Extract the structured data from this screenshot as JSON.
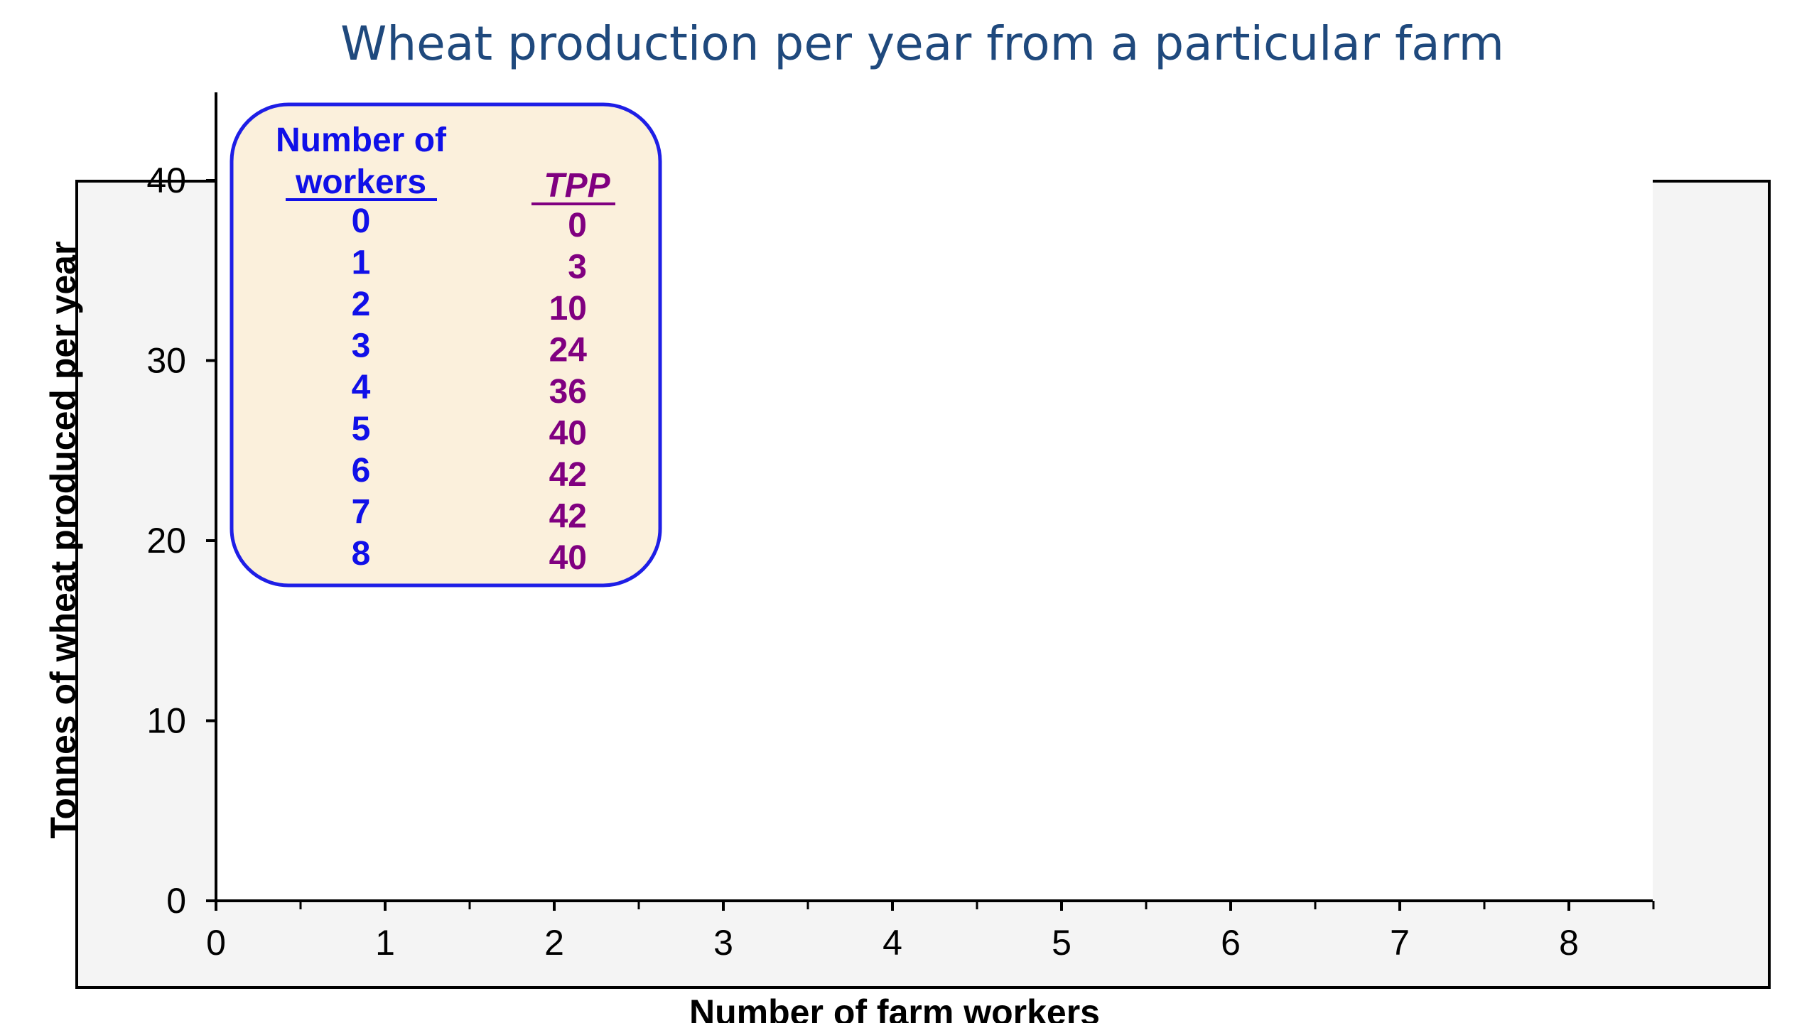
{
  "title": "Wheat production per year from a particular farm",
  "chart_data": {
    "type": "table",
    "title": "Wheat production per year from a particular farm",
    "xlabel": "Number of farm workers",
    "ylabel": "Tonnes of wheat produced per year",
    "xlim": [
      0,
      8.5
    ],
    "ylim": [
      0,
      40
    ],
    "x_ticks": [
      "0",
      "1",
      "2",
      "3",
      "4",
      "5",
      "6",
      "7",
      "8"
    ],
    "y_ticks": [
      "0",
      "10",
      "20",
      "30",
      "40"
    ],
    "grid": false,
    "table": {
      "columns": [
        "Number of workers",
        "TPP"
      ],
      "col1_header_lines": [
        "Number of",
        "workers"
      ],
      "col2_header": "TPP",
      "workers": [
        "0",
        "1",
        "2",
        "3",
        "4",
        "5",
        "6",
        "7",
        "8"
      ],
      "tpp": [
        "0",
        "3",
        "10",
        "24",
        "36",
        "40",
        "42",
        "42",
        "40"
      ]
    },
    "series": []
  },
  "colors": {
    "title": "#1F497D",
    "table_border": "#1E1EE6",
    "table_fill": "#FBF0DC",
    "workers_text": "#1010E8",
    "tpp_text": "#800080",
    "frame_fill": "#F4F4F4",
    "plot_fill": "#FFFFFF"
  }
}
